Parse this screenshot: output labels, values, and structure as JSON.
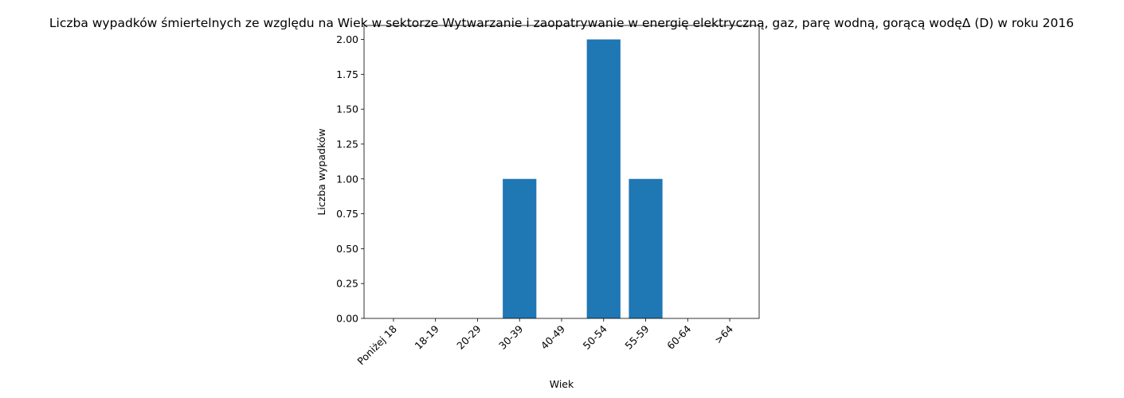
{
  "chart_data": {
    "type": "bar",
    "title": "Liczba wypadków śmiertelnych ze względu na Wiek w sektorze Wytwarzanie i zaopatrywanie w energię elektryczną, gaz, parę wodną, gorącą wodęΔ  (D) w roku 2016",
    "xlabel": "Wiek",
    "ylabel": "Liczba wypadków",
    "categories": [
      "Poniżej 18",
      "18-19",
      "20-29",
      "30-39",
      "40-49",
      "50-54",
      "55-59",
      "60-64",
      ">64"
    ],
    "values": [
      0,
      0,
      0,
      1,
      0,
      2,
      1,
      0,
      0
    ],
    "ylim": [
      0,
      2.1
    ],
    "yticks": [
      "0.00",
      "0.25",
      "0.50",
      "0.75",
      "1.00",
      "1.25",
      "1.50",
      "1.75",
      "2.00"
    ],
    "bar_color": "#1f77b4",
    "grid": false,
    "legend": "none"
  }
}
